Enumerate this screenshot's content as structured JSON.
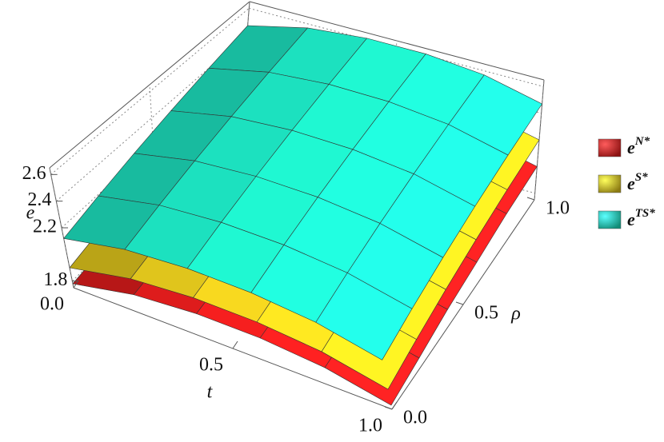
{
  "chart_data": {
    "type": "surface3d",
    "xlabel": "t",
    "ylabel": "ρ",
    "zlabel": "e",
    "x": [
      0,
      0.2,
      0.4,
      0.6,
      0.8,
      1
    ],
    "y": [
      0,
      0.2,
      0.4,
      0.6,
      0.8,
      1
    ],
    "xlim": [
      0,
      1
    ],
    "ylim": [
      0,
      1
    ],
    "zlim": [
      1.75,
      2.65
    ],
    "xticks": [
      {
        "value": 0,
        "label": "0.0"
      },
      0.5,
      {
        "value": 1,
        "label": "1.0"
      }
    ],
    "yticks": [
      {
        "value": 0,
        "label": "0.0"
      },
      0.5,
      {
        "value": 1,
        "label": "1.0"
      }
    ],
    "zticks": [
      1.8,
      2.2,
      2.4,
      2.6
    ],
    "grid": true,
    "legend": "right",
    "series": [
      {
        "name": "e",
        "superscript": "N*",
        "color": "#ff2020",
        "z": [
          [
            1.78,
            1.82,
            1.87,
            1.91,
            1.96,
            2.0
          ],
          [
            1.88,
            1.92,
            1.97,
            2.01,
            2.06,
            2.1
          ],
          [
            1.92,
            1.96,
            2.01,
            2.05,
            2.1,
            2.14
          ],
          [
            1.92,
            1.96,
            2.01,
            2.05,
            2.1,
            2.14
          ],
          [
            1.88,
            1.92,
            1.97,
            2.01,
            2.06,
            2.1
          ],
          [
            1.78,
            1.82,
            1.87,
            1.91,
            1.96,
            2.0
          ]
        ]
      },
      {
        "name": "e",
        "superscript": "S*",
        "color": "#ffe020",
        "z": [
          [
            1.9,
            1.96,
            2.02,
            2.08,
            2.14,
            2.2
          ],
          [
            2.0,
            2.06,
            2.12,
            2.18,
            2.24,
            2.3
          ],
          [
            2.04,
            2.1,
            2.16,
            2.22,
            2.28,
            2.34
          ],
          [
            2.04,
            2.1,
            2.16,
            2.22,
            2.28,
            2.34
          ],
          [
            2.0,
            2.06,
            2.12,
            2.18,
            2.24,
            2.3
          ],
          [
            1.9,
            1.96,
            2.02,
            2.08,
            2.14,
            2.2
          ]
        ]
      },
      {
        "name": "e",
        "superscript": "TS*",
        "color": "#20ffd8",
        "z": [
          [
            2.12,
            2.19,
            2.26,
            2.33,
            2.4,
            2.47
          ],
          [
            2.22,
            2.29,
            2.36,
            2.43,
            2.5,
            2.57
          ],
          [
            2.26,
            2.33,
            2.4,
            2.47,
            2.54,
            2.61
          ],
          [
            2.26,
            2.33,
            2.4,
            2.47,
            2.54,
            2.61
          ],
          [
            2.22,
            2.29,
            2.36,
            2.43,
            2.5,
            2.57
          ],
          [
            2.12,
            2.19,
            2.26,
            2.33,
            2.4,
            2.47
          ]
        ]
      }
    ]
  }
}
